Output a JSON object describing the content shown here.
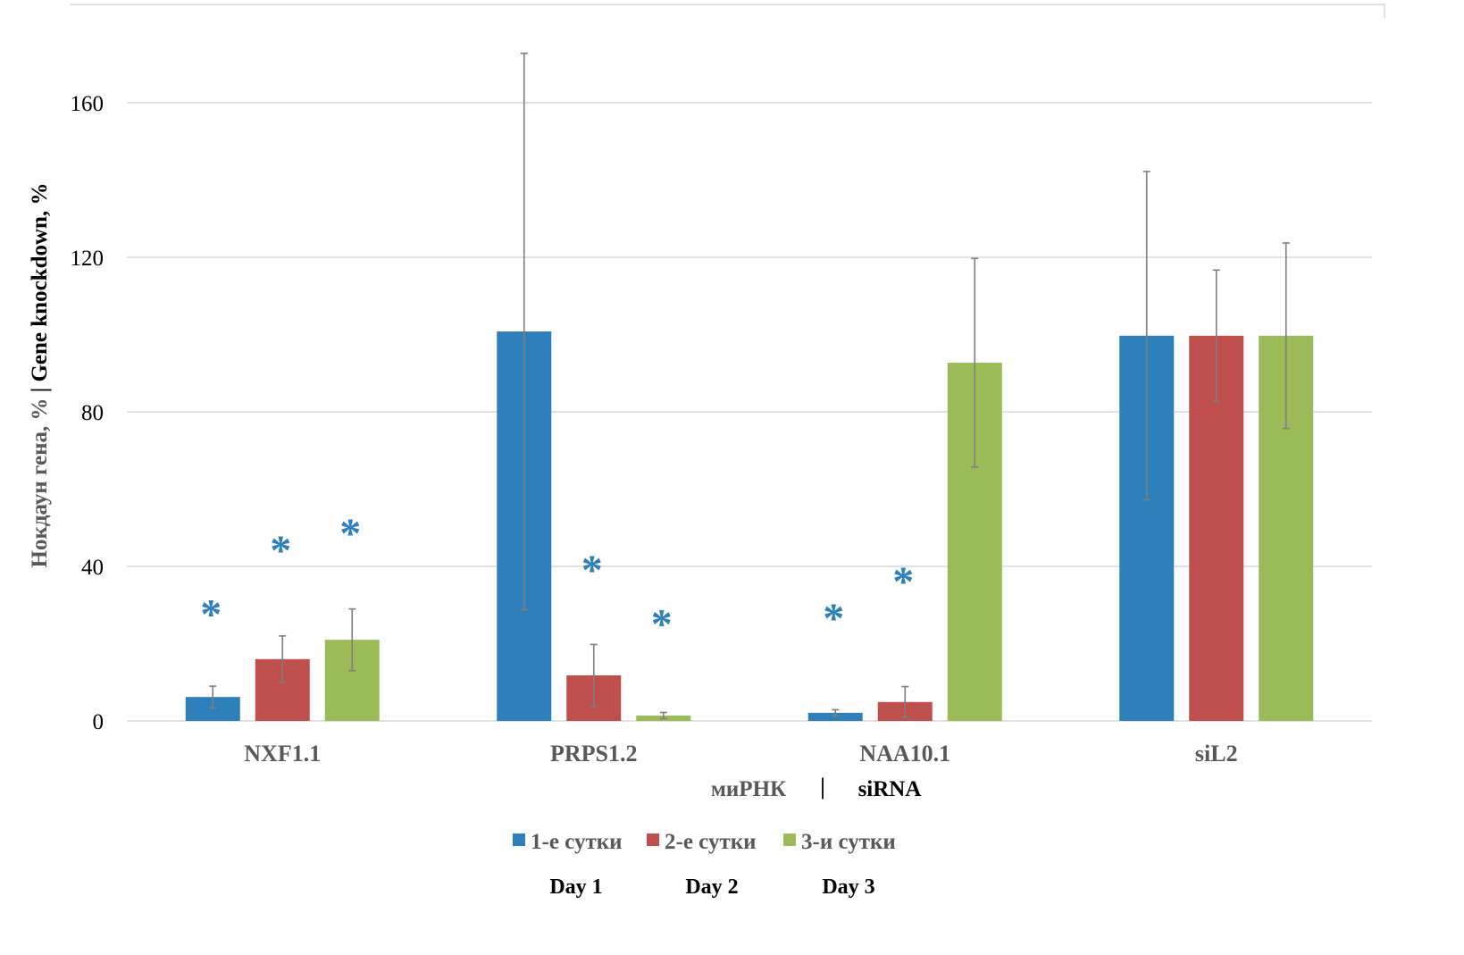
{
  "chart_data": {
    "type": "bar",
    "title": "",
    "ylabel_ru": "Нокдаун гена, %",
    "ylabel_sep": "|",
    "ylabel_en": "Gene knockdown, %",
    "xlabel_ru": "миРНК",
    "xlabel_sep": "|",
    "xlabel_en": "siRNA",
    "ylim": [
      0,
      180
    ],
    "yticks": [
      0,
      40,
      80,
      120,
      160
    ],
    "grid": true,
    "legend_position": "bottom",
    "categories": [
      "NXF1.1",
      "PRPS1.2",
      "NAA10.1",
      "siL2"
    ],
    "series": [
      {
        "name": "1-е сутки",
        "name_en": "Day 1",
        "color": "#2e80ba",
        "values": [
          6.2,
          100.8,
          2.1,
          99.7
        ],
        "errors": [
          2.8,
          72,
          0.8,
          42.5
        ]
      },
      {
        "name": "2-е сутки",
        "name_en": "Day 2",
        "color": "#c0504d",
        "values": [
          16,
          11.8,
          4.9,
          99.7
        ],
        "errors": [
          6,
          8,
          4,
          17
        ]
      },
      {
        "name": "3-и сутки",
        "name_en": "Day 3",
        "color": "#9bbb59",
        "values": [
          21,
          1.4,
          92.7,
          99.7
        ],
        "errors": [
          8,
          0.8,
          27,
          24
        ]
      }
    ],
    "annotations": [
      {
        "text": "*",
        "category": "NXF1.1",
        "series": 0,
        "y": 29
      },
      {
        "text": "*",
        "category": "NXF1.1",
        "series": 1,
        "y": 45.5
      },
      {
        "text": "*",
        "category": "NXF1.1",
        "series": 2,
        "y": 50
      },
      {
        "text": "*",
        "category": "PRPS1.2",
        "series": 1,
        "y": 40.5
      },
      {
        "text": "*",
        "category": "PRPS1.2",
        "series": 2,
        "y": 26.5
      },
      {
        "text": "*",
        "category": "NAA10.1",
        "series": 0,
        "y": 28
      },
      {
        "text": "*",
        "category": "NAA10.1",
        "series": 1,
        "y": 37.5
      }
    ],
    "annotation_color": "#2e80ba"
  }
}
